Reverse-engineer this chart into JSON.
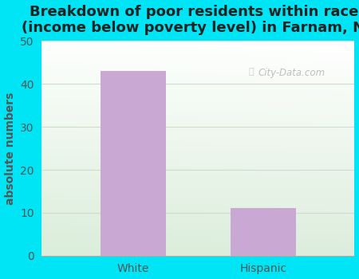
{
  "categories": [
    "White",
    "Hispanic"
  ],
  "values": [
    43,
    11
  ],
  "bar_color": "#c9a8d4",
  "title": "Breakdown of poor residents within races\n(income below poverty level) in Farnam, NE",
  "ylabel": "absolute numbers",
  "ylim": [
    0,
    50
  ],
  "yticks": [
    0,
    10,
    20,
    30,
    40,
    50
  ],
  "title_fontsize": 13,
  "label_fontsize": 10,
  "tick_fontsize": 10,
  "bg_outer": "#00e5f5",
  "bg_plot": "#e8f5e8",
  "watermark": "City-Data.com",
  "bar_width": 0.5,
  "title_color": "#222222"
}
